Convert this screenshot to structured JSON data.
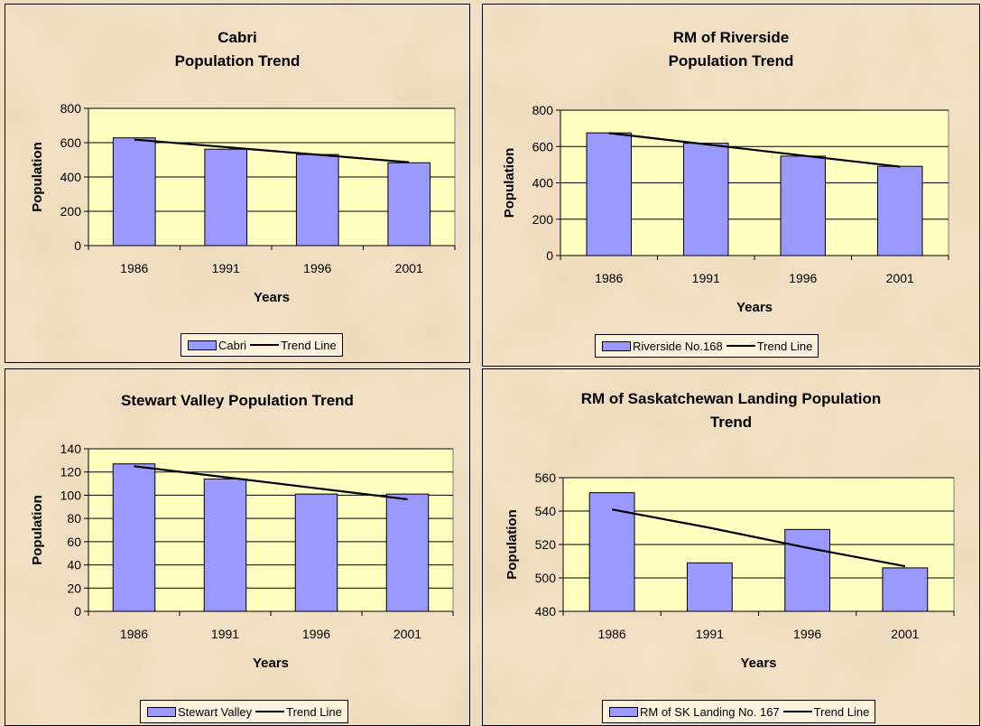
{
  "chart_data": [
    {
      "type": "bar",
      "title_lines": [
        "Cabri",
        "Population Trend"
      ],
      "categories": [
        "1986",
        "1991",
        "1996",
        "2001"
      ],
      "series": [
        {
          "name": "Cabri",
          "values": [
            628,
            562,
            531,
            483
          ]
        }
      ],
      "trend_line": {
        "name": "Trend Line",
        "values": [
          618,
          574,
          530,
          486
        ]
      },
      "xlabel": "Years",
      "ylabel": "Population",
      "ylim": [
        0,
        800
      ],
      "yticks": [
        0,
        200,
        400,
        600,
        800
      ],
      "grid": true,
      "legend": "bottom"
    },
    {
      "type": "bar",
      "title_lines": [
        "RM of Riverside",
        "Population Trend"
      ],
      "categories": [
        "1986",
        "1991",
        "1996",
        "2001"
      ],
      "series": [
        {
          "name": "Riverside No.168",
          "values": [
            675,
            618,
            547,
            491
          ]
        }
      ],
      "trend_line": {
        "name": "Trend Line",
        "values": [
          674,
          612,
          550,
          489
        ]
      },
      "xlabel": "Years",
      "ylabel": "Population",
      "ylim": [
        0,
        800
      ],
      "yticks": [
        0,
        200,
        400,
        600,
        800
      ],
      "grid": true,
      "legend": "bottom"
    },
    {
      "type": "bar",
      "title_lines": [
        "Stewart Valley  Population Trend"
      ],
      "categories": [
        "1986",
        "1991",
        "1996",
        "2001"
      ],
      "series": [
        {
          "name": "Stewart Valley",
          "values": [
            127,
            114,
            101,
            101
          ]
        }
      ],
      "trend_line": {
        "name": "Trend Line",
        "values": [
          125,
          115.5,
          106,
          96.5
        ]
      },
      "xlabel": "Years",
      "ylabel": "Population",
      "ylim": [
        0,
        140
      ],
      "yticks": [
        0,
        20,
        40,
        60,
        80,
        100,
        120,
        140
      ],
      "grid": true,
      "legend": "bottom"
    },
    {
      "type": "bar",
      "title_lines": [
        "RM of Saskatchewan Landing  Population",
        "Trend"
      ],
      "categories": [
        "1986",
        "1991",
        "1996",
        "2001"
      ],
      "series": [
        {
          "name": "RM of SK Landing No. 167",
          "values": [
            551,
            509,
            529,
            506
          ]
        }
      ],
      "trend_line": {
        "name": "Trend Line",
        "values": [
          541,
          530,
          518,
          507
        ]
      },
      "xlabel": "Years",
      "ylabel": "Population",
      "ylim": [
        480,
        560
      ],
      "yticks": [
        480,
        500,
        520,
        540,
        560
      ],
      "grid": true,
      "legend": "bottom"
    }
  ],
  "colors": {
    "bar_fill": "#9999ff",
    "plot_background": "#ffffc0",
    "trend_line": "#000000"
  }
}
